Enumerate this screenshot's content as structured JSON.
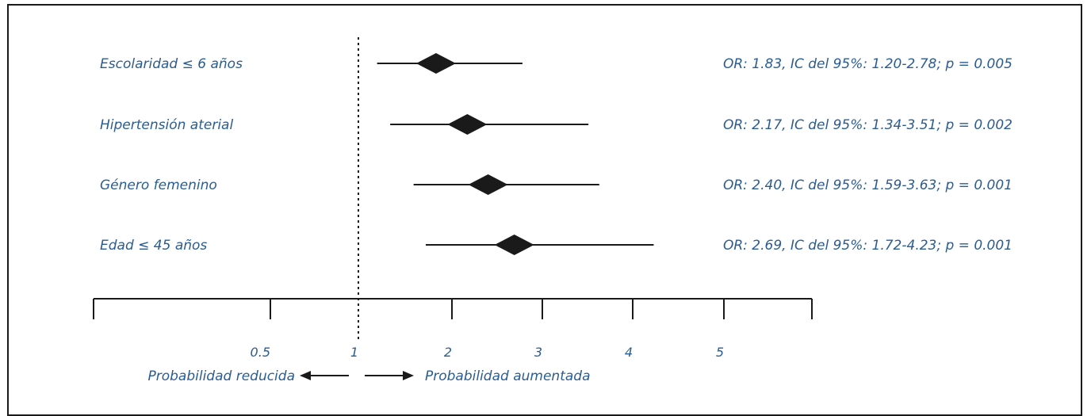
{
  "chart_data": {
    "type": "forest",
    "x_ticks": [
      "0.5",
      "1",
      "2",
      "3",
      "4",
      "5"
    ],
    "x_tick_values": [
      0.5,
      1,
      2,
      3,
      4,
      5
    ],
    "x_range": [
      0.25,
      6
    ],
    "reference_value": 1,
    "rows": [
      {
        "label": "Escolaridad ≤ 6 años",
        "or": 1.83,
        "ci_low": 1.2,
        "ci_high": 2.78,
        "annotation": "OR: 1.83, IC del 95%: 1.20-2.78; p = 0.005"
      },
      {
        "label": "Hipertensión aterial",
        "or": 2.17,
        "ci_low": 1.34,
        "ci_high": 3.51,
        "annotation": "OR: 2.17, IC del 95%: 1.34-3.51; p = 0.002"
      },
      {
        "label": "Género femenino",
        "or": 2.4,
        "ci_low": 1.59,
        "ci_high": 3.63,
        "annotation": "OR: 2.40, IC del 95%: 1.59-3.63; p = 0.001"
      },
      {
        "label": "Edad ≤ 45 años",
        "or": 2.69,
        "ci_low": 1.72,
        "ci_high": 4.23,
        "annotation": "OR: 2.69, IC del 95%: 1.72-4.23; p = 0.001"
      }
    ],
    "direction_left": "Probabilidad reducida",
    "direction_right": "Probabilidad aumentada",
    "colors": {
      "text": "#2a5c93",
      "marks": "#1a1a1a"
    }
  }
}
